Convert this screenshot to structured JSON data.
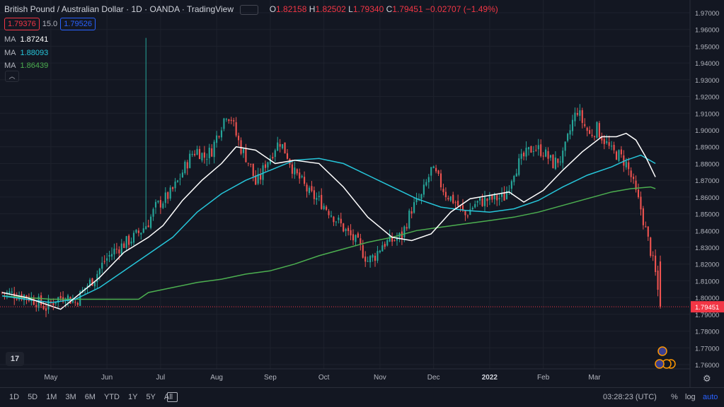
{
  "header": {
    "symbol": "British Pound / Australian Dollar",
    "interval": "1D",
    "broker": "OANDA",
    "platform": "TradingView",
    "open_label": "O",
    "open": "1.82158",
    "high_label": "H",
    "high": "1.82502",
    "low_label": "L",
    "low": "1.79340",
    "close_label": "C",
    "close": "1.79451",
    "change": "−0.02707 (−1.49%)"
  },
  "badges": {
    "sell": "1.79376",
    "spread": "15.0",
    "buy": "1.79526"
  },
  "ma_lines": [
    {
      "label": "MA",
      "value": "1.87241",
      "color": "#ffffff"
    },
    {
      "label": "MA",
      "value": "1.88093",
      "color": "#26c6da"
    },
    {
      "label": "MA",
      "value": "1.86439",
      "color": "#4caf50"
    }
  ],
  "bottom_bar": {
    "ranges": [
      "1D",
      "5D",
      "1M",
      "3M",
      "6M",
      "YTD",
      "1Y",
      "5Y",
      "All"
    ],
    "clock": "03:28:23 (UTC)",
    "percent": "%",
    "log": "log",
    "auto": "auto"
  },
  "logo_text": "17",
  "colors": {
    "up": "#26a69a",
    "down": "#ef5350",
    "bg": "#131722",
    "grid": "#1e222d"
  },
  "chart_data": {
    "type": "candlestick",
    "y_axis": {
      "min": 1.755,
      "max": 1.975,
      "ticks": [
        "1.97000",
        "1.96000",
        "1.95000",
        "1.94000",
        "1.93000",
        "1.92000",
        "1.91000",
        "1.90000",
        "1.89000",
        "1.88000",
        "1.87000",
        "1.86000",
        "1.85000",
        "1.84000",
        "1.83000",
        "1.82000",
        "1.81000",
        "1.80000",
        "1.79000",
        "1.78000",
        "1.77000",
        "1.76000"
      ],
      "last_price_label": "1.79451"
    },
    "x_axis": {
      "labels": [
        "May",
        "Jun",
        "Jul",
        "Aug",
        "Sep",
        "Oct",
        "Nov",
        "Dec",
        "2022",
        "Feb",
        "Mar"
      ]
    },
    "close_path": [
      [
        0,
        1.803
      ],
      [
        10,
        1.801
      ],
      [
        15,
        1.797
      ],
      [
        18,
        1.794
      ],
      [
        22,
        1.799
      ],
      [
        26,
        1.801
      ],
      [
        30,
        1.797
      ],
      [
        34,
        1.806
      ],
      [
        38,
        1.812
      ],
      [
        42,
        1.822
      ],
      [
        46,
        1.828
      ],
      [
        50,
        1.832
      ],
      [
        54,
        1.836
      ],
      [
        57,
        1.84
      ],
      [
        60,
        1.845
      ],
      [
        63,
        1.854
      ],
      [
        66,
        1.858
      ],
      [
        69,
        1.862
      ],
      [
        72,
        1.869
      ],
      [
        75,
        1.878
      ],
      [
        78,
        1.886
      ],
      [
        80,
        1.888
      ],
      [
        83,
        1.884
      ],
      [
        86,
        1.888
      ],
      [
        89,
        1.9
      ],
      [
        92,
        1.91
      ],
      [
        94,
        1.907
      ],
      [
        96,
        1.897
      ],
      [
        98,
        1.889
      ],
      [
        100,
        1.884
      ],
      [
        102,
        1.878
      ],
      [
        104,
        1.868
      ],
      [
        106,
        1.872
      ],
      [
        108,
        1.88
      ],
      [
        110,
        1.884
      ],
      [
        112,
        1.89
      ],
      [
        114,
        1.893
      ],
      [
        117,
        1.885
      ],
      [
        120,
        1.874
      ],
      [
        122,
        1.871
      ],
      [
        126,
        1.862
      ],
      [
        130,
        1.858
      ],
      [
        134,
        1.852
      ],
      [
        138,
        1.845
      ],
      [
        142,
        1.838
      ],
      [
        146,
        1.832
      ],
      [
        150,
        1.822
      ],
      [
        153,
        1.825
      ],
      [
        156,
        1.832
      ],
      [
        160,
        1.834
      ],
      [
        164,
        1.837
      ],
      [
        168,
        1.853
      ],
      [
        172,
        1.86
      ],
      [
        176,
        1.876
      ],
      [
        178,
        1.873
      ],
      [
        182,
        1.862
      ],
      [
        186,
        1.857
      ],
      [
        190,
        1.849
      ],
      [
        194,
        1.856
      ],
      [
        198,
        1.858
      ],
      [
        202,
        1.859
      ],
      [
        206,
        1.86
      ],
      [
        210,
        1.876
      ],
      [
        214,
        1.884
      ],
      [
        218,
        1.89
      ],
      [
        222,
        1.887
      ],
      [
        226,
        1.88
      ],
      [
        230,
        1.884
      ],
      [
        234,
        1.905
      ],
      [
        236,
        1.912
      ],
      [
        238,
        1.905
      ],
      [
        241,
        1.897
      ],
      [
        244,
        1.901
      ],
      [
        247,
        1.894
      ],
      [
        250,
        1.887
      ],
      [
        253,
        1.885
      ],
      [
        256,
        1.88
      ],
      [
        258,
        1.872
      ],
      [
        260,
        1.862
      ],
      [
        262,
        1.853
      ],
      [
        264,
        1.84
      ],
      [
        266,
        1.828
      ],
      [
        268,
        1.814
      ],
      [
        270,
        1.7945
      ]
    ],
    "spikes": [
      {
        "day": 59,
        "high": 1.955
      }
    ],
    "total_days": 271,
    "ma_white": [
      [
        0,
        1.803
      ],
      [
        10,
        1.8
      ],
      [
        20,
        1.795
      ],
      [
        24,
        1.793
      ],
      [
        30,
        1.8
      ],
      [
        40,
        1.812
      ],
      [
        50,
        1.827
      ],
      [
        60,
        1.836
      ],
      [
        66,
        1.843
      ],
      [
        74,
        1.858
      ],
      [
        82,
        1.87
      ],
      [
        90,
        1.88
      ],
      [
        96,
        1.89
      ],
      [
        104,
        1.888
      ],
      [
        112,
        1.88
      ],
      [
        120,
        1.882
      ],
      [
        130,
        1.88
      ],
      [
        140,
        1.866
      ],
      [
        150,
        1.848
      ],
      [
        160,
        1.836
      ],
      [
        168,
        1.834
      ],
      [
        176,
        1.838
      ],
      [
        184,
        1.851
      ],
      [
        192,
        1.859
      ],
      [
        200,
        1.861
      ],
      [
        208,
        1.863
      ],
      [
        214,
        1.857
      ],
      [
        222,
        1.864
      ],
      [
        230,
        1.876
      ],
      [
        238,
        1.887
      ],
      [
        246,
        1.896
      ],
      [
        252,
        1.896
      ],
      [
        256,
        1.898
      ],
      [
        260,
        1.894
      ],
      [
        264,
        1.884
      ],
      [
        268,
        1.872
      ]
    ],
    "ma_cyan": [
      [
        0,
        1.801
      ],
      [
        20,
        1.797
      ],
      [
        30,
        1.799
      ],
      [
        40,
        1.806
      ],
      [
        50,
        1.816
      ],
      [
        60,
        1.826
      ],
      [
        70,
        1.836
      ],
      [
        80,
        1.851
      ],
      [
        90,
        1.862
      ],
      [
        100,
        1.87
      ],
      [
        110,
        1.876
      ],
      [
        120,
        1.882
      ],
      [
        130,
        1.883
      ],
      [
        140,
        1.88
      ],
      [
        150,
        1.873
      ],
      [
        160,
        1.866
      ],
      [
        170,
        1.859
      ],
      [
        180,
        1.854
      ],
      [
        190,
        1.852
      ],
      [
        200,
        1.851
      ],
      [
        210,
        1.853
      ],
      [
        220,
        1.858
      ],
      [
        230,
        1.866
      ],
      [
        240,
        1.873
      ],
      [
        250,
        1.878
      ],
      [
        256,
        1.882
      ],
      [
        262,
        1.885
      ],
      [
        268,
        1.88
      ]
    ],
    "ma_green": [
      [
        0,
        1.801
      ],
      [
        20,
        1.799
      ],
      [
        40,
        1.799
      ],
      [
        56,
        1.799
      ],
      [
        60,
        1.803
      ],
      [
        70,
        1.806
      ],
      [
        80,
        1.809
      ],
      [
        90,
        1.811
      ],
      [
        100,
        1.814
      ],
      [
        110,
        1.816
      ],
      [
        120,
        1.82
      ],
      [
        130,
        1.825
      ],
      [
        140,
        1.829
      ],
      [
        150,
        1.833
      ],
      [
        160,
        1.836
      ],
      [
        170,
        1.84
      ],
      [
        180,
        1.842
      ],
      [
        190,
        1.844
      ],
      [
        200,
        1.846
      ],
      [
        210,
        1.848
      ],
      [
        220,
        1.851
      ],
      [
        230,
        1.855
      ],
      [
        240,
        1.859
      ],
      [
        250,
        1.863
      ],
      [
        258,
        1.865
      ],
      [
        266,
        1.866
      ],
      [
        268,
        1.865
      ]
    ]
  }
}
